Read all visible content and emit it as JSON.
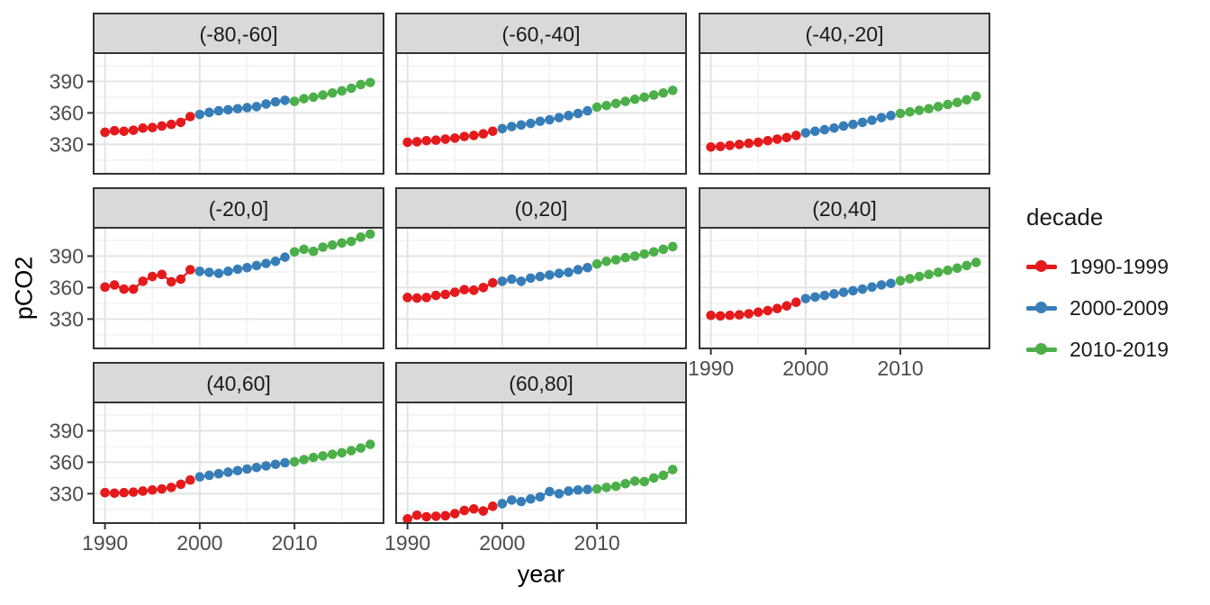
{
  "chart_data": {
    "type": "scatter",
    "title": "",
    "xlabel": "year",
    "ylabel": "pCO2",
    "facet_variable": "latitude band",
    "x_ticks": [
      1990,
      2000,
      2010
    ],
    "y_ticks": [
      330,
      360,
      390
    ],
    "x_minor_ticks": [
      1995,
      2005,
      2015
    ],
    "y_minor_ticks": [
      315,
      345,
      375,
      405
    ],
    "x_range": [
      1988.8,
      2019.4
    ],
    "y_range": [
      302,
      417
    ],
    "grid": true,
    "legend": {
      "title": "decade",
      "position": "right",
      "entries": [
        {
          "label": "1990-1999",
          "color": "#e41a1c",
          "year_start": 1990,
          "year_end": 1999
        },
        {
          "label": "2000-2009",
          "color": "#377eb8",
          "year_start": 2000,
          "year_end": 2009
        },
        {
          "label": "2010-2019",
          "color": "#4daf4a",
          "year_start": 2010,
          "year_end": 2019
        }
      ]
    },
    "years": [
      1990,
      1991,
      1992,
      1993,
      1994,
      1995,
      1996,
      1997,
      1998,
      1999,
      2000,
      2001,
      2002,
      2003,
      2004,
      2005,
      2006,
      2007,
      2008,
      2009,
      2010,
      2011,
      2012,
      2013,
      2014,
      2015,
      2016,
      2017,
      2018
    ],
    "facets": [
      {
        "label": "(-80,-60]",
        "values": [
          341.5,
          343,
          342.5,
          343.5,
          345.5,
          346,
          347.5,
          349,
          351,
          356.5,
          358.5,
          360.5,
          362,
          363,
          364,
          365,
          366,
          368.5,
          370.5,
          372,
          371,
          373.5,
          375,
          377,
          379,
          381,
          383.5,
          387,
          389
        ]
      },
      {
        "label": "(-60,-40]",
        "values": [
          332,
          332.5,
          333.5,
          334,
          335,
          336,
          337.5,
          338.5,
          340,
          342.5,
          345,
          347,
          348.5,
          350,
          352,
          353.5,
          355.5,
          357.5,
          359.5,
          362,
          365.5,
          367,
          369,
          371,
          373,
          375,
          377,
          379,
          381.5
        ]
      },
      {
        "label": "(-40,-20]",
        "values": [
          327.5,
          328,
          329,
          330,
          331,
          332,
          333.5,
          335,
          336.5,
          338.5,
          341,
          342.5,
          344,
          345.5,
          347.5,
          349,
          351,
          353,
          355.5,
          357.5,
          359.5,
          361,
          362.5,
          364,
          366,
          368,
          370,
          372.5,
          376
        ]
      },
      {
        "label": "(-20,0]",
        "values": [
          360.5,
          362.5,
          358.5,
          358.5,
          366,
          370.5,
          372.5,
          365.5,
          368,
          377,
          375.5,
          374.5,
          373.5,
          375.5,
          377.5,
          379,
          381,
          383,
          385,
          389,
          394,
          396.5,
          394.5,
          398.5,
          400.5,
          402.5,
          404,
          408,
          411
        ]
      },
      {
        "label": "(0,20]",
        "values": [
          350.5,
          350,
          350.5,
          352.5,
          353.5,
          355.5,
          358,
          357.5,
          360,
          364.5,
          366,
          368,
          366,
          369,
          370.5,
          372,
          373.5,
          374.5,
          377,
          379,
          382.5,
          385,
          386.5,
          388.5,
          390,
          392,
          394,
          396.5,
          399
        ]
      },
      {
        "label": "(20,40]",
        "values": [
          333.5,
          333,
          333.5,
          334,
          335,
          336.5,
          338,
          340,
          342.5,
          346,
          349.5,
          351,
          352.5,
          354,
          355.5,
          357,
          358.5,
          360.5,
          362.5,
          364,
          366.5,
          368.5,
          370.5,
          372.5,
          374.5,
          376.5,
          378.5,
          381,
          384
        ]
      },
      {
        "label": "(40,60]",
        "values": [
          331,
          330.5,
          331,
          331.5,
          332.5,
          333.5,
          334.5,
          336,
          339,
          343,
          346,
          347.5,
          349,
          350.5,
          352,
          353.5,
          355,
          356.5,
          358,
          359.5,
          360.5,
          362.5,
          364.5,
          366,
          367.5,
          369,
          371,
          373.5,
          377
        ]
      },
      {
        "label": "(60,80]",
        "values": [
          306,
          309.5,
          308,
          308.5,
          309,
          311,
          314,
          315.5,
          313.5,
          318,
          320.5,
          324,
          322.5,
          325,
          327,
          332,
          330,
          332.5,
          333.5,
          334,
          334.5,
          336,
          337,
          339.5,
          342,
          341.5,
          345,
          347.5,
          353
        ]
      }
    ]
  },
  "style": {
    "strip_bg": "#d9d9d9",
    "panel_bg": "#ffffff",
    "border": "#333333",
    "grid_major": "#e4e4e4",
    "grid_minor": "#f2f2f2",
    "tick_color": "#333333",
    "tick_label_color": "#4d4d4d",
    "strip_text_color": "#1a1a1a"
  }
}
